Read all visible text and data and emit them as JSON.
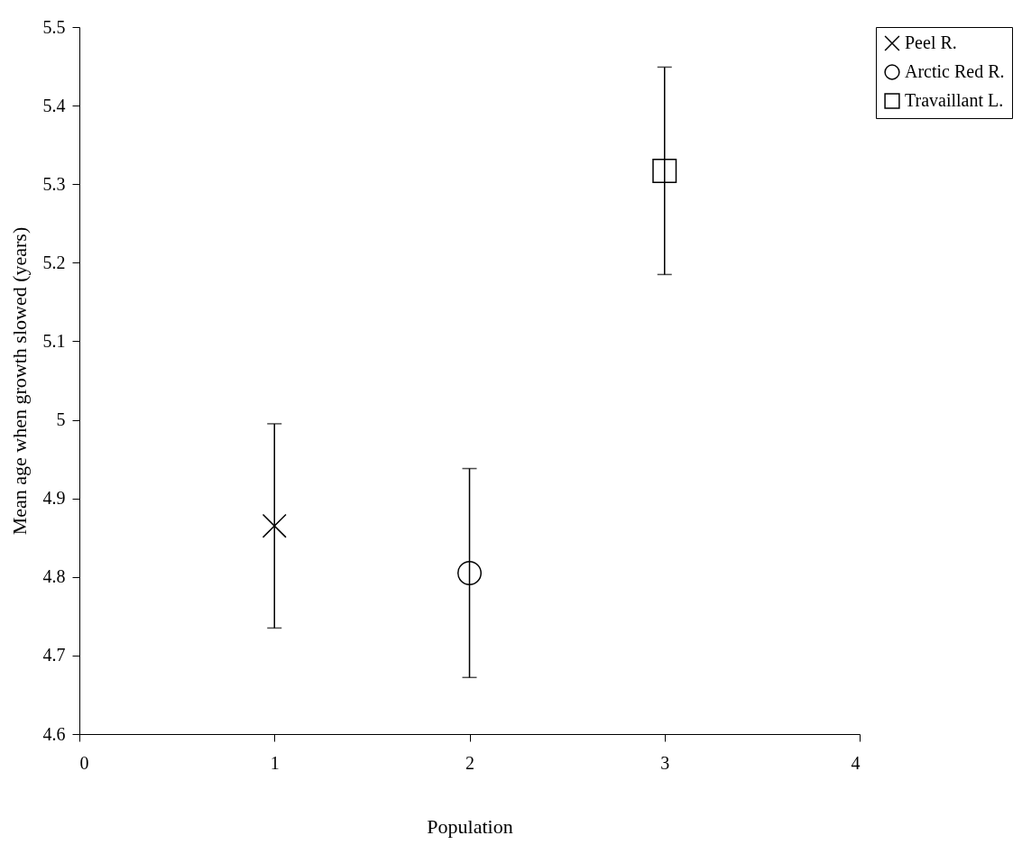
{
  "chart_data": {
    "type": "scatter",
    "xlabel": "Population",
    "ylabel": "Mean age when growth slowed (years)",
    "xlim": [
      0,
      4
    ],
    "xticks": [
      0,
      1,
      2,
      3,
      4
    ],
    "ylim": [
      4.6,
      5.5
    ],
    "yticks": [
      4.6,
      4.7,
      4.8,
      4.9,
      5,
      5.1,
      5.2,
      5.3,
      5.4,
      5.5
    ],
    "grid": false,
    "legend": "right",
    "series": [
      {
        "name": "Peel R.",
        "color": "#000000",
        "marker": "cross",
        "x": [
          1
        ],
        "values": [
          4.865
        ],
        "errors": [
          0.13
        ]
      },
      {
        "name": "Arctic Red R.",
        "color": "#000000",
        "marker": "circle",
        "x": [
          2
        ],
        "values": [
          4.805
        ],
        "errors": [
          0.133
        ]
      },
      {
        "name": "Travaillant L.",
        "color": "#000000",
        "marker": "square",
        "x": [
          3
        ],
        "values": [
          5.317
        ],
        "errors": [
          0.132
        ]
      }
    ]
  }
}
